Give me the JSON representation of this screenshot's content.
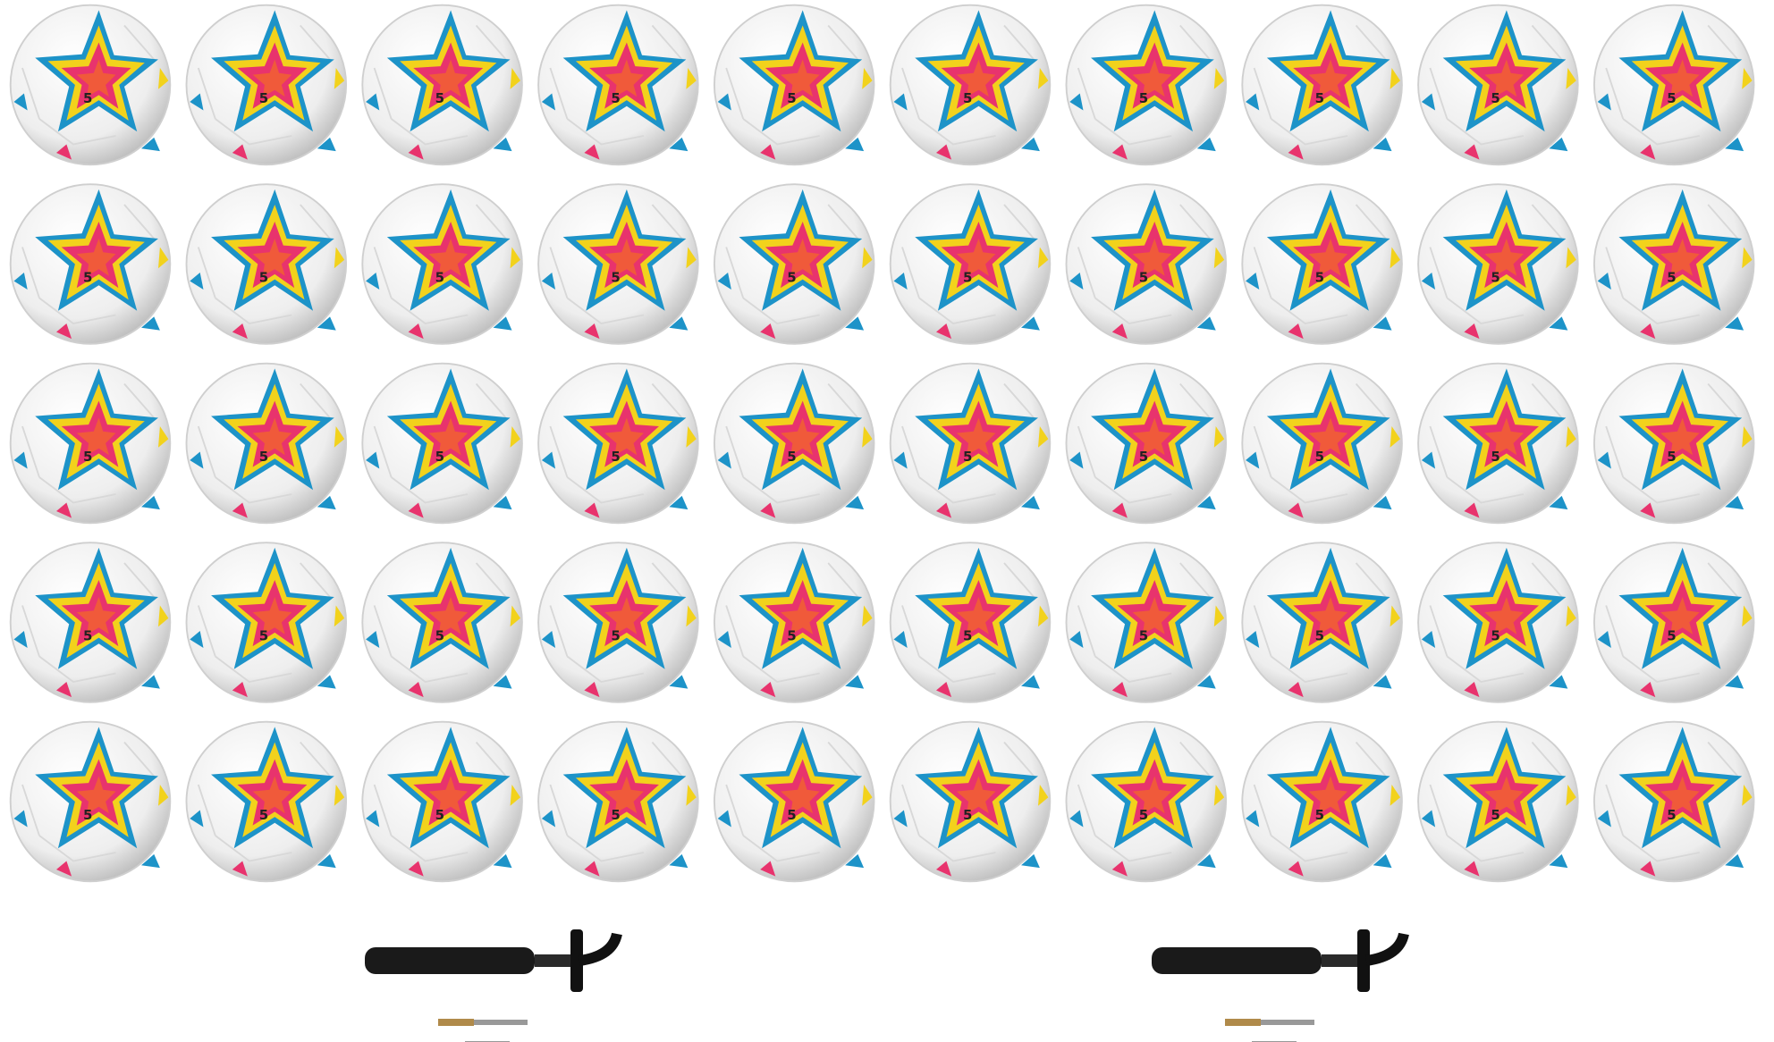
{
  "ball_marking": "5"
}
